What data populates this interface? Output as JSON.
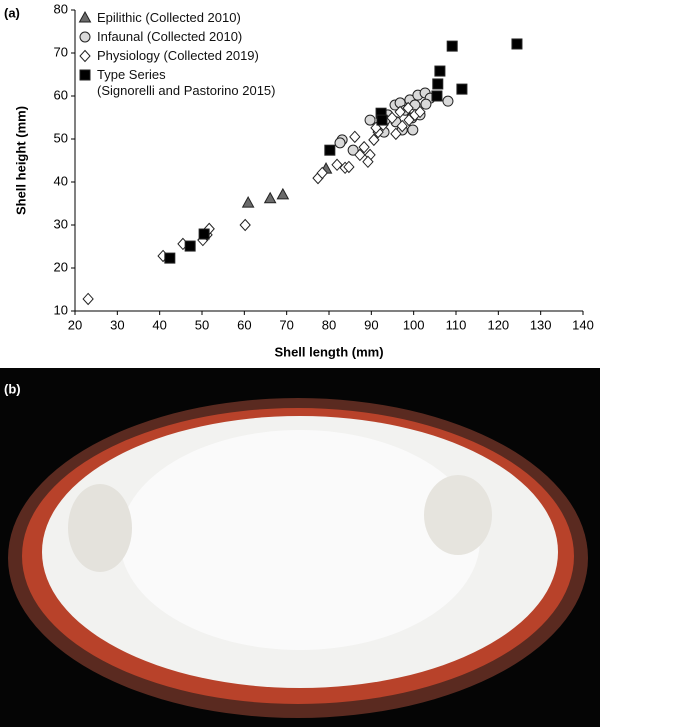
{
  "panel_labels": {
    "a": "(a)",
    "b": "(b)"
  },
  "chart_data": {
    "type": "scatter",
    "xlabel": "Shell length (mm)",
    "ylabel": "Shell height (mm)",
    "xlim": [
      20,
      140
    ],
    "ylim": [
      10,
      80
    ],
    "xticks": [
      20,
      30,
      40,
      50,
      60,
      70,
      80,
      90,
      100,
      110,
      120,
      130,
      140
    ],
    "yticks": [
      10,
      20,
      30,
      40,
      50,
      60,
      70,
      80
    ],
    "series": [
      {
        "name": "Epilithic (Collected 2010)",
        "marker": "triangle",
        "color": "#6b6b6b",
        "x": [
          60.9,
          66.1,
          69.1,
          79.3
        ],
        "y": [
          35.1,
          36.1,
          37.0,
          43.0
        ]
      },
      {
        "name": "Infaunal (Collected 2010)",
        "marker": "circle",
        "color": "#d9d9d9",
        "x": [
          83.1,
          85.7,
          93,
          93.9,
          95.6,
          96.8,
          98,
          99.1,
          100.3,
          101,
          102.7,
          103.9,
          108.1,
          101.5,
          95.8,
          97.3,
          99.8,
          89.7,
          93.2,
          99.6,
          82.6,
          102.9
        ],
        "y": [
          49.8,
          47.4,
          51.6,
          55.6,
          57.9,
          58.4,
          56.7,
          59.1,
          57.9,
          60.2,
          60.7,
          59.5,
          58.8,
          55.6,
          54,
          52.1,
          52.1,
          54.4,
          54.4,
          54.9,
          49.1,
          58.1
        ]
      },
      {
        "name": "Physiology (Collected 2019)",
        "marker": "diamond",
        "color": "#ffffff",
        "x": [
          23.1,
          40.8,
          45.5,
          50.2,
          51.2,
          51.7,
          60.2,
          77.4,
          78.4,
          81.9,
          83.8,
          84.7,
          86.1,
          88.3,
          89.7,
          89.2,
          90.6,
          91.6,
          91.1,
          92.8,
          94.9,
          96.8,
          97.3,
          98.9,
          100.3,
          101.5,
          98.7,
          95.8,
          87.3
        ],
        "y": [
          12.8,
          22.8,
          25.6,
          26.5,
          27.7,
          29.1,
          30.0,
          40.9,
          42.1,
          44.0,
          43.3,
          43.5,
          50.5,
          48.1,
          46.3,
          44.7,
          49.8,
          51.6,
          52.6,
          53.3,
          54.9,
          56.3,
          53,
          54.4,
          55.6,
          56.3,
          57.2,
          51.2,
          46.3
        ]
      },
      {
        "name": "Type Series\n(Signorelli and Pastorino 2015)",
        "marker": "square",
        "color": "#000000",
        "x": [
          42.4,
          47.2,
          50.5,
          80.2,
          92.3,
          92.5,
          105.5,
          105.7,
          106.2,
          109.1,
          111.4,
          124.4
        ],
        "y": [
          22.3,
          25.1,
          27.9,
          47.4,
          56.0,
          54.4,
          60.0,
          62.8,
          65.8,
          71.6,
          61.6,
          72.1
        ]
      }
    ]
  }
}
